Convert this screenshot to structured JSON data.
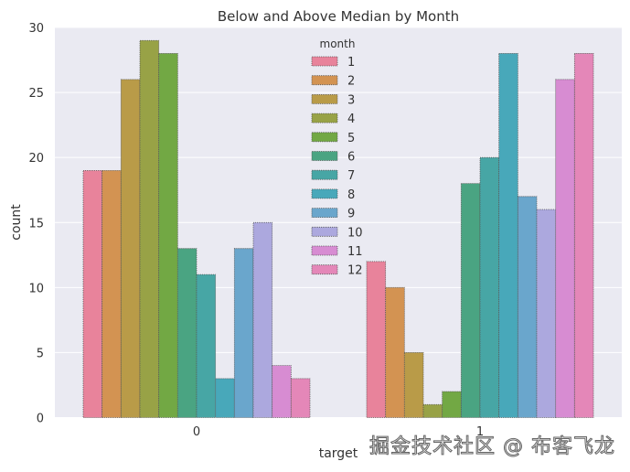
{
  "chart_data": {
    "type": "bar",
    "title": "Below and Above Median by Month",
    "xlabel": "target",
    "ylabel": "count",
    "categories": [
      "0",
      "1"
    ],
    "ylim": [
      0,
      30
    ],
    "yticks": [
      0,
      5,
      10,
      15,
      20,
      25,
      30
    ],
    "grid": true,
    "legend": {
      "title": "month",
      "placement": "top-center"
    },
    "series": [
      {
        "name": "1",
        "values": [
          19,
          12
        ],
        "color": "#e8839b"
      },
      {
        "name": "2",
        "values": [
          19,
          10
        ],
        "color": "#d39352"
      },
      {
        "name": "3",
        "values": [
          26,
          5
        ],
        "color": "#b99b48"
      },
      {
        "name": "4",
        "values": [
          29,
          1
        ],
        "color": "#98a246"
      },
      {
        "name": "5",
        "values": [
          28,
          2
        ],
        "color": "#72a844"
      },
      {
        "name": "6",
        "values": [
          13,
          18
        ],
        "color": "#4aa482"
      },
      {
        "name": "7",
        "values": [
          11,
          20
        ],
        "color": "#47a6a5"
      },
      {
        "name": "8",
        "values": [
          3,
          28
        ],
        "color": "#48a8ba"
      },
      {
        "name": "9",
        "values": [
          13,
          17
        ],
        "color": "#6aa6cc"
      },
      {
        "name": "10",
        "values": [
          15,
          16
        ],
        "color": "#aca8de"
      },
      {
        "name": "11",
        "values": [
          4,
          26
        ],
        "color": "#d78cd2"
      },
      {
        "name": "12",
        "values": [
          3,
          28
        ],
        "color": "#e487b8"
      }
    ]
  },
  "watermark": "掘金技术社区 @ 布客飞龙"
}
